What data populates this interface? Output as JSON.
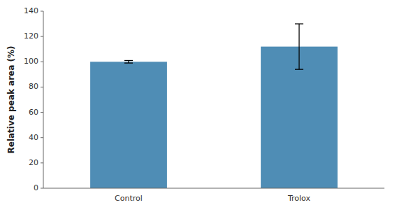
{
  "chart_data": {
    "type": "bar",
    "categories": [
      "Control",
      "Trolox"
    ],
    "values": [
      100,
      112
    ],
    "errors": [
      1.0,
      18.0
    ],
    "color": "#4f8db5",
    "ylabel": "Relative peak area (%)",
    "ylim": [
      0,
      140
    ],
    "yticks": [
      0,
      20,
      40,
      60,
      80,
      100,
      120,
      140
    ],
    "grid": false
  }
}
